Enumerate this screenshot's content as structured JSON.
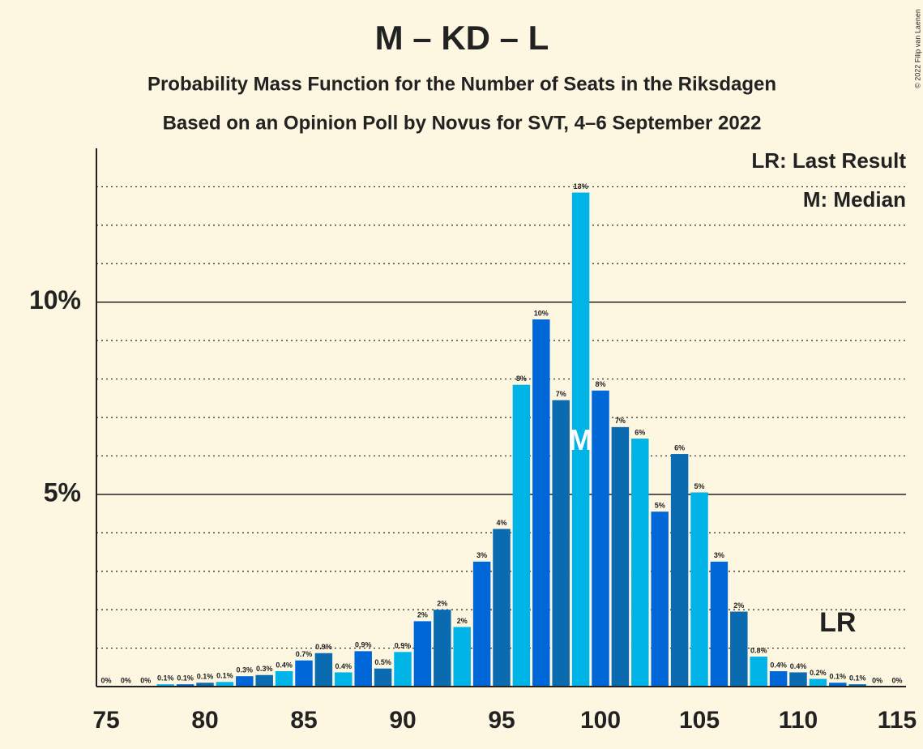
{
  "chart_data": {
    "type": "bar",
    "title": "M – KD – L",
    "subtitle": "Probability Mass Function for the Number of Seats in the Riksdagen",
    "subtitle2": "Based on an Opinion Poll by Novus for SVT, 4–6 September 2022",
    "copyright": "© 2022 Filip van Laenen",
    "legend": [
      "LR: Last Result",
      "M: Median"
    ],
    "legend_position": "top-right",
    "median": 99,
    "median_label": "M",
    "last_result": 112,
    "last_result_label": "LR",
    "x": [
      75,
      76,
      77,
      78,
      79,
      80,
      81,
      82,
      83,
      84,
      85,
      86,
      87,
      88,
      89,
      90,
      91,
      92,
      93,
      94,
      95,
      96,
      97,
      98,
      99,
      100,
      101,
      102,
      103,
      104,
      105,
      106,
      107,
      108,
      109,
      110,
      111,
      112,
      113,
      114,
      115
    ],
    "values": [
      0,
      0,
      0,
      0.06,
      0.06,
      0.1,
      0.12,
      0.27,
      0.3,
      0.4,
      0.68,
      0.87,
      0.37,
      0.92,
      0.47,
      0.9,
      1.7,
      2.0,
      1.55,
      3.25,
      4.1,
      7.85,
      9.55,
      7.45,
      12.85,
      7.7,
      6.75,
      6.45,
      4.55,
      6.05,
      5.05,
      3.25,
      1.95,
      0.78,
      0.4,
      0.37,
      0.2,
      0.1,
      0.06,
      0,
      0
    ],
    "value_labels": [
      "0%",
      "0%",
      "0%",
      "0.1%",
      "0.1%",
      "0.1%",
      "0.1%",
      "0.3%",
      "0.3%",
      "0.4%",
      "0.7%",
      "0.9%",
      "0.4%",
      "0.9%",
      "0.5%",
      "0.9%",
      "2%",
      "2%",
      "2%",
      "3%",
      "4%",
      "8%",
      "10%",
      "7%",
      "13%",
      "8%",
      "7%",
      "6%",
      "5%",
      "6%",
      "5%",
      "3%",
      "2%",
      "0.8%",
      "0.4%",
      "0.4%",
      "0.2%",
      "0.1%",
      "0.1%",
      "0%",
      "0%"
    ],
    "palette": [
      "#00b4e8",
      "#0067d8",
      "#0a6bb0"
    ],
    "xlim": [
      75,
      115
    ],
    "xticks": [
      75,
      80,
      85,
      90,
      95,
      100,
      105,
      110,
      115
    ],
    "ylim": [
      0,
      14
    ],
    "yticks": [
      {
        "value": 5,
        "label": "5%"
      },
      {
        "value": 10,
        "label": "10%"
      }
    ],
    "minor_yticks": [
      1,
      2,
      3,
      4,
      6,
      7,
      8,
      9,
      11,
      12,
      13
    ],
    "grid": true
  }
}
